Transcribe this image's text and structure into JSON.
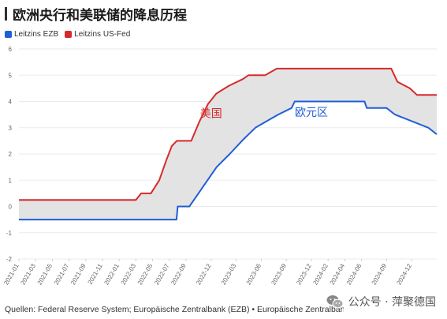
{
  "title": "欧洲央行和美联储的降息历程",
  "legend": {
    "items": [
      {
        "label": "Leitzins EZB",
        "color": "#1f5fd6"
      },
      {
        "label": "Leitzins US-Fed",
        "color": "#d62a2a"
      }
    ]
  },
  "source": "Quellen: Federal Reserve System; Europäische Zentralbank (EZB) • Europäische Zentralbank, Federal Reserve,",
  "watermark": {
    "text": "公众号 · 萍聚德国",
    "icon": "wechat-icon"
  },
  "chart_data": {
    "type": "line",
    "y_ticks": [
      6,
      5,
      4,
      3,
      2,
      1,
      0,
      -1,
      -2
    ],
    "ylim": [
      -2,
      6
    ],
    "x_ticks": [
      "2021-01",
      "2021-03",
      "2021-05",
      "2021-07",
      "2021-09",
      "2021-11",
      "2022-01",
      "2022-03",
      "2022-05",
      "2022-07",
      "2022-09",
      "2022-12",
      "2023-03",
      "2023-06",
      "2023-09",
      "2023-12",
      "2024-02",
      "2024-04",
      "2024-06",
      "2024-09",
      "2024-12"
    ],
    "xlim": [
      "2021-01",
      "2025-03"
    ],
    "fill_between": true,
    "fill_color": "#e3e3e3",
    "grid": true,
    "series": [
      {
        "name": "Leitzins EZB",
        "color": "#1f5fd6",
        "points": [
          [
            "2021-01",
            -0.5
          ],
          [
            "2022-07-27",
            -0.5
          ],
          [
            "2022-08-01",
            0.0
          ],
          [
            "2022-09-13",
            0.0
          ],
          [
            "2022-11-02",
            0.75
          ],
          [
            "2022-12-21",
            1.5
          ],
          [
            "2023-02-08",
            2.0
          ],
          [
            "2023-03-22",
            2.5
          ],
          [
            "2023-05-10",
            3.0
          ],
          [
            "2023-06-21",
            3.25
          ],
          [
            "2023-08-02",
            3.5
          ],
          [
            "2023-09-20",
            3.75
          ],
          [
            "2023-10-01",
            4.0
          ],
          [
            "2024-06-12",
            4.0
          ],
          [
            "2024-06-20",
            3.75
          ],
          [
            "2024-09-01",
            3.75
          ],
          [
            "2024-10-01",
            3.5
          ],
          [
            "2025-02-01",
            3.0
          ],
          [
            "2025-03-01",
            2.75
          ]
        ]
      },
      {
        "name": "Leitzins US-Fed",
        "color": "#d62a2a",
        "points": [
          [
            "2021-01",
            0.25
          ],
          [
            "2022-03-01",
            0.25
          ],
          [
            "2022-03-20",
            0.5
          ],
          [
            "2022-04-25",
            0.5
          ],
          [
            "2022-05-25",
            1.0
          ],
          [
            "2022-06-20",
            1.75
          ],
          [
            "2022-07-10",
            2.3
          ],
          [
            "2022-07-28",
            2.5
          ],
          [
            "2022-09-20",
            2.5
          ],
          [
            "2022-10-20",
            3.25
          ],
          [
            "2022-11-20",
            3.9
          ],
          [
            "2022-12-20",
            4.3
          ],
          [
            "2023-02-05",
            4.6
          ],
          [
            "2023-03-25",
            4.85
          ],
          [
            "2023-04-15",
            5.0
          ],
          [
            "2023-06-15",
            5.0
          ],
          [
            "2023-07-27",
            5.25
          ],
          [
            "2024-09-18",
            5.25
          ],
          [
            "2024-10-10",
            4.75
          ],
          [
            "2024-11-25",
            4.5
          ],
          [
            "2024-12-20",
            4.25
          ],
          [
            "2025-03-01",
            4.25
          ]
        ]
      }
    ],
    "annotations": [
      {
        "text": "美国",
        "series": 1,
        "at": [
          "2022-12-01",
          3.4
        ]
      },
      {
        "text": "欧元区",
        "series": 0,
        "at": [
          "2023-12-01",
          3.45
        ]
      }
    ]
  }
}
